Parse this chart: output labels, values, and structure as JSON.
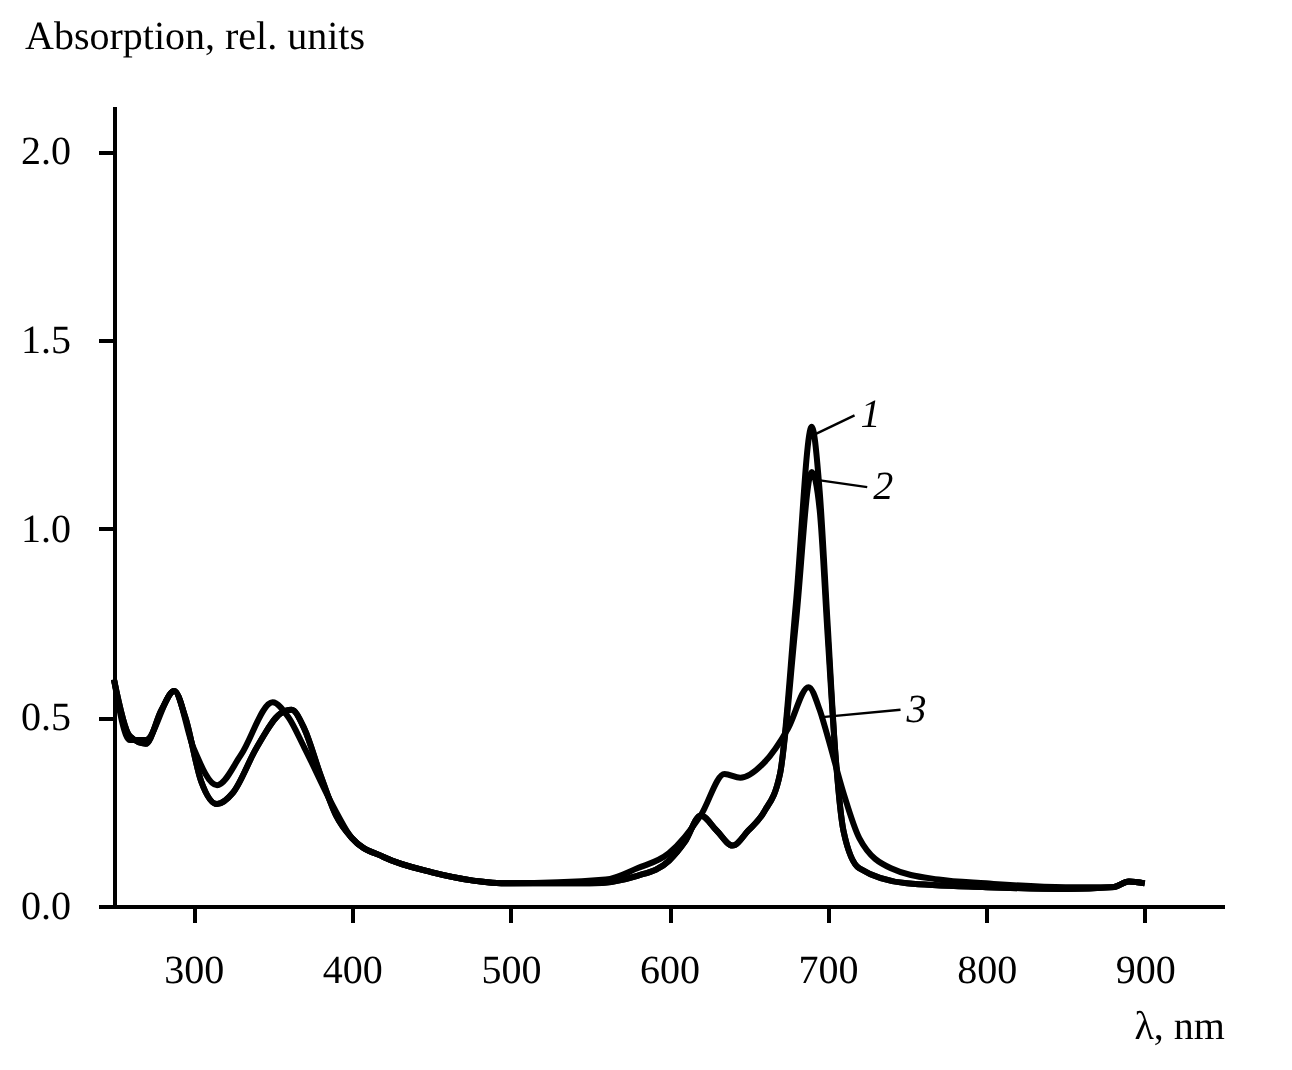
{
  "chart_data": {
    "type": "line",
    "xlabel": "λ, nm",
    "ylabel": "Absorption, rel. units",
    "xlim": [
      250,
      950
    ],
    "xticks": [
      300,
      400,
      500,
      600,
      700,
      800,
      900
    ],
    "ylim": [
      0,
      2.12
    ],
    "yticks": [
      {
        "value": 0,
        "label": "0.0"
      },
      0.5,
      {
        "value": 1,
        "label": "1.0"
      },
      1.5,
      {
        "value": 2,
        "label": "2.0"
      }
    ],
    "grid": false,
    "legend": "right",
    "marker": "none",
    "line_style": "solid",
    "series": [
      {
        "name": "1",
        "color": "#000000",
        "x": [
          250,
          260,
          270,
          280,
          288,
          295,
          305,
          315,
          325,
          340,
          355,
          362,
          370,
          380,
          390,
          400,
          420,
          450,
          500,
          550,
          580,
          600,
          610,
          620,
          630,
          640,
          650,
          660,
          670,
          680,
          690,
          695,
          700,
          705,
          710,
          720,
          750,
          800,
          850,
          880,
          890,
          900
        ],
        "values": [
          0.6,
          0.45,
          0.43,
          0.52,
          0.57,
          0.5,
          0.33,
          0.27,
          0.3,
          0.42,
          0.51,
          0.52,
          0.47,
          0.35,
          0.24,
          0.18,
          0.13,
          0.09,
          0.06,
          0.06,
          0.08,
          0.12,
          0.17,
          0.24,
          0.2,
          0.16,
          0.2,
          0.25,
          0.35,
          0.8,
          1.27,
          1.1,
          0.75,
          0.4,
          0.2,
          0.1,
          0.06,
          0.05,
          0.045,
          0.05,
          0.065,
          0.06
        ]
      },
      {
        "name": "2",
        "color": "#000000",
        "x": [
          250,
          260,
          270,
          280,
          288,
          295,
          305,
          315,
          325,
          340,
          355,
          362,
          370,
          380,
          390,
          400,
          420,
          450,
          500,
          550,
          580,
          600,
          610,
          620,
          630,
          640,
          650,
          660,
          670,
          680,
          690,
          695,
          700,
          705,
          710,
          720,
          750,
          800,
          850,
          880,
          890,
          900
        ],
        "values": [
          0.6,
          0.45,
          0.43,
          0.52,
          0.57,
          0.5,
          0.33,
          0.27,
          0.3,
          0.42,
          0.51,
          0.52,
          0.47,
          0.35,
          0.24,
          0.18,
          0.13,
          0.09,
          0.06,
          0.06,
          0.08,
          0.12,
          0.17,
          0.24,
          0.2,
          0.16,
          0.2,
          0.25,
          0.35,
          0.75,
          1.15,
          1.05,
          0.72,
          0.4,
          0.2,
          0.1,
          0.06,
          0.05,
          0.045,
          0.05,
          0.065,
          0.06
        ]
      },
      {
        "name": "3",
        "color": "#000000",
        "x": [
          250,
          260,
          270,
          288,
          300,
          315,
          330,
          350,
          360,
          370,
          390,
          400,
          420,
          450,
          500,
          560,
          580,
          600,
          620,
          635,
          645,
          660,
          675,
          688,
          695,
          700,
          710,
          720,
          740,
          770,
          800,
          850,
          880,
          890,
          900
        ],
        "values": [
          0.6,
          0.44,
          0.44,
          0.57,
          0.42,
          0.32,
          0.4,
          0.54,
          0.5,
          0.42,
          0.25,
          0.18,
          0.13,
          0.09,
          0.06,
          0.07,
          0.1,
          0.14,
          0.24,
          0.35,
          0.34,
          0.38,
          0.47,
          0.58,
          0.52,
          0.45,
          0.3,
          0.18,
          0.1,
          0.07,
          0.06,
          0.05,
          0.05,
          0.065,
          0.06
        ]
      }
    ]
  }
}
